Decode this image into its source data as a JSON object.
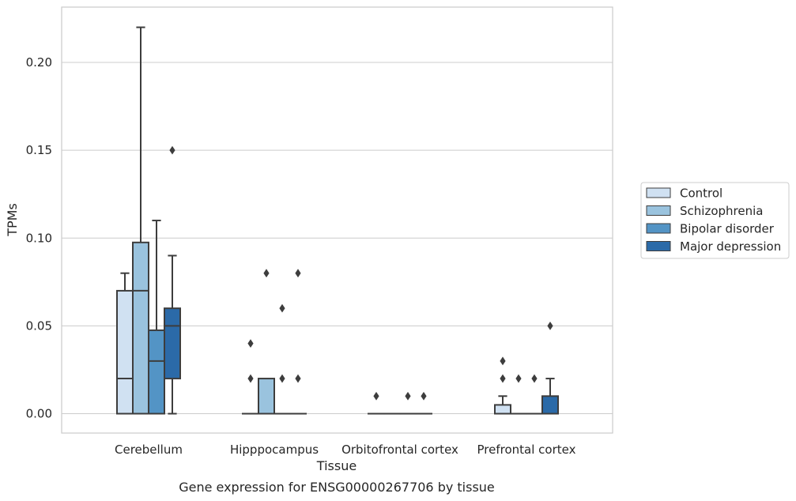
{
  "chart_data": {
    "type": "box",
    "caption": "Gene expression for ENSG00000267706 by tissue",
    "xlabel": "Tissue",
    "ylabel": "TPMs",
    "ylim": [
      -0.011,
      0.232
    ],
    "yticks": [
      "0.00",
      "0.05",
      "0.10",
      "0.15",
      "0.20"
    ],
    "ytick_values": [
      0.0,
      0.05,
      0.1,
      0.15,
      0.2
    ],
    "grid": "horizontal",
    "legend_position": "right",
    "categories": [
      "Cerebellum",
      "Hipppocampus",
      "Orbitofrontal cortex",
      "Prefrontal cortex"
    ],
    "series": [
      {
        "name": "Control",
        "color": "#d0e1f2",
        "boxes": [
          {
            "q1": 0.0,
            "median": 0.02,
            "q3": 0.07,
            "whisker_low": 0.0,
            "whisker_high": 0.08,
            "outliers": []
          },
          {
            "q1": 0.0,
            "median": 0.0,
            "q3": 0.0,
            "whisker_low": 0.0,
            "whisker_high": 0.0,
            "outliers": [
              0.02,
              0.04
            ]
          },
          {
            "q1": 0.0,
            "median": 0.0,
            "q3": 0.0,
            "whisker_low": 0.0,
            "whisker_high": 0.0,
            "outliers": [
              0.01
            ]
          },
          {
            "q1": 0.0,
            "median": 0.0,
            "q3": 0.005,
            "whisker_low": 0.0,
            "whisker_high": 0.01,
            "outliers": [
              0.02,
              0.03
            ]
          }
        ]
      },
      {
        "name": "Schizophrenia",
        "color": "#9ac3de",
        "boxes": [
          {
            "q1": 0.0,
            "median": 0.07,
            "q3": 0.0975,
            "whisker_low": 0.0,
            "whisker_high": 0.22,
            "outliers": []
          },
          {
            "q1": 0.0,
            "median": 0.0,
            "q3": 0.02,
            "whisker_low": 0.0,
            "whisker_high": 0.02,
            "outliers": [
              0.08
            ]
          },
          {
            "q1": 0.0,
            "median": 0.0,
            "q3": 0.0,
            "whisker_low": 0.0,
            "whisker_high": 0.0,
            "outliers": []
          },
          {
            "q1": 0.0,
            "median": 0.0,
            "q3": 0.0,
            "whisker_low": 0.0,
            "whisker_high": 0.0,
            "outliers": [
              0.02
            ]
          }
        ]
      },
      {
        "name": "Bipolar disorder",
        "color": "#5394c5",
        "boxes": [
          {
            "q1": 0.0,
            "median": 0.03,
            "q3": 0.0475,
            "whisker_low": 0.0,
            "whisker_high": 0.11,
            "outliers": []
          },
          {
            "q1": 0.0,
            "median": 0.0,
            "q3": 0.0,
            "whisker_low": 0.0,
            "whisker_high": 0.0,
            "outliers": [
              0.02,
              0.06
            ]
          },
          {
            "q1": 0.0,
            "median": 0.0,
            "q3": 0.0,
            "whisker_low": 0.0,
            "whisker_high": 0.0,
            "outliers": [
              0.01
            ]
          },
          {
            "q1": 0.0,
            "median": 0.0,
            "q3": 0.0,
            "whisker_low": 0.0,
            "whisker_high": 0.0,
            "outliers": [
              0.02
            ]
          }
        ]
      },
      {
        "name": "Major depression",
        "color": "#2b6aa8",
        "boxes": [
          {
            "q1": 0.02,
            "median": 0.05,
            "q3": 0.06,
            "whisker_low": 0.0,
            "whisker_high": 0.09,
            "outliers": [
              0.15
            ]
          },
          {
            "q1": 0.0,
            "median": 0.0,
            "q3": 0.0,
            "whisker_low": 0.0,
            "whisker_high": 0.0,
            "outliers": [
              0.02,
              0.08
            ]
          },
          {
            "q1": 0.0,
            "median": 0.0,
            "q3": 0.0,
            "whisker_low": 0.0,
            "whisker_high": 0.0,
            "outliers": [
              0.01
            ]
          },
          {
            "q1": 0.0,
            "median": 0.0,
            "q3": 0.01,
            "whisker_low": 0.0,
            "whisker_high": 0.02,
            "outliers": [
              0.05
            ]
          }
        ]
      }
    ]
  }
}
